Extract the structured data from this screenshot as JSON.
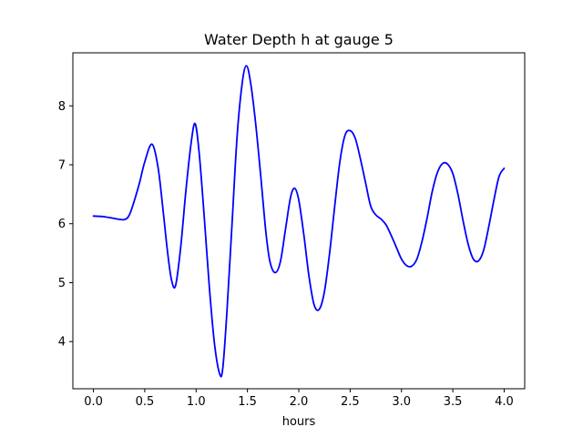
{
  "chart_data": {
    "type": "line",
    "title": "Water Depth h at gauge 5",
    "xlabel": "hours",
    "ylabel": "",
    "xlim": [
      -0.2,
      4.2
    ],
    "ylim": [
      3.2,
      8.9
    ],
    "xticks": [
      "0.0",
      "0.5",
      "1.0",
      "1.5",
      "2.0",
      "2.5",
      "3.0",
      "3.5",
      "4.0"
    ],
    "yticks": [
      "4",
      "5",
      "6",
      "7",
      "8"
    ],
    "grid": false,
    "series": [
      {
        "color": "#0000ff",
        "x": [
          0.0,
          0.1,
          0.2,
          0.3,
          0.35,
          0.4,
          0.45,
          0.5,
          0.57,
          0.63,
          0.68,
          0.72,
          0.76,
          0.8,
          0.85,
          0.9,
          0.95,
          0.99,
          1.03,
          1.08,
          1.13,
          1.18,
          1.23,
          1.26,
          1.3,
          1.35,
          1.4,
          1.45,
          1.49,
          1.53,
          1.58,
          1.63,
          1.68,
          1.72,
          1.77,
          1.82,
          1.87,
          1.92,
          1.96,
          2.0,
          2.05,
          2.1,
          2.15,
          2.2,
          2.25,
          2.3,
          2.35,
          2.4,
          2.45,
          2.5,
          2.55,
          2.6,
          2.65,
          2.7,
          2.75,
          2.8,
          2.85,
          2.9,
          2.95,
          3.0,
          3.05,
          3.1,
          3.15,
          3.2,
          3.25,
          3.3,
          3.35,
          3.4,
          3.45,
          3.5,
          3.55,
          3.6,
          3.65,
          3.7,
          3.75,
          3.8,
          3.85,
          3.9,
          3.95,
          4.0
        ],
        "y": [
          6.13,
          6.12,
          6.09,
          6.07,
          6.15,
          6.4,
          6.7,
          7.05,
          7.35,
          6.95,
          6.2,
          5.55,
          5.05,
          4.95,
          5.6,
          6.55,
          7.35,
          7.7,
          7.2,
          6.1,
          4.9,
          3.95,
          3.45,
          3.55,
          4.5,
          6.0,
          7.5,
          8.4,
          8.68,
          8.4,
          7.7,
          6.8,
          5.85,
          5.35,
          5.17,
          5.35,
          5.9,
          6.45,
          6.6,
          6.4,
          5.8,
          5.1,
          4.62,
          4.55,
          4.85,
          5.5,
          6.3,
          7.05,
          7.5,
          7.58,
          7.45,
          7.1,
          6.7,
          6.3,
          6.15,
          6.08,
          5.98,
          5.8,
          5.6,
          5.4,
          5.29,
          5.28,
          5.4,
          5.7,
          6.1,
          6.55,
          6.87,
          7.02,
          7.01,
          6.85,
          6.5,
          6.05,
          5.65,
          5.4,
          5.37,
          5.55,
          5.95,
          6.4,
          6.8,
          6.94
        ]
      }
    ]
  }
}
